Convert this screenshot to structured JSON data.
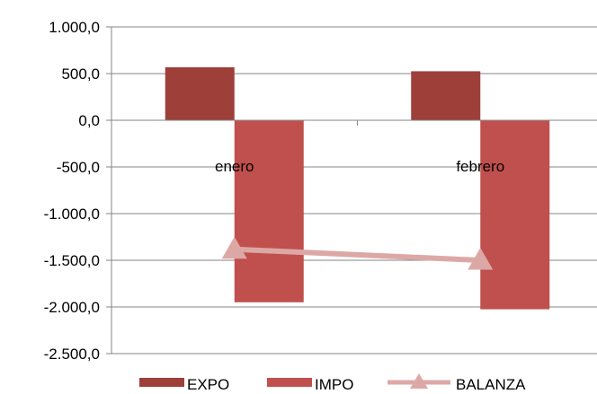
{
  "chart_data": {
    "type": "bar",
    "categories": [
      "enero",
      "febrero"
    ],
    "series": [
      {
        "name": "EXPO",
        "type": "bar",
        "values": [
          568,
          525
        ],
        "color": "#9e3f3a"
      },
      {
        "name": "IMPO",
        "type": "bar",
        "values": [
          -1950,
          -2025
        ],
        "color": "#c0504d"
      },
      {
        "name": "BALANZA",
        "type": "line",
        "marker": "triangle",
        "values": [
          -1382,
          -1500
        ],
        "color": "#dca8a6"
      }
    ],
    "y_ticks": [
      "1.000,0",
      "500,0",
      "0,0",
      "-500,0",
      "-1.000,0",
      "-1.500,0",
      "-2.000,0",
      "-2.500,0"
    ],
    "ylim": [
      -2500,
      1000
    ],
    "grid": true,
    "legend": "bottom",
    "title": "",
    "xlabel": "",
    "ylabel": ""
  }
}
